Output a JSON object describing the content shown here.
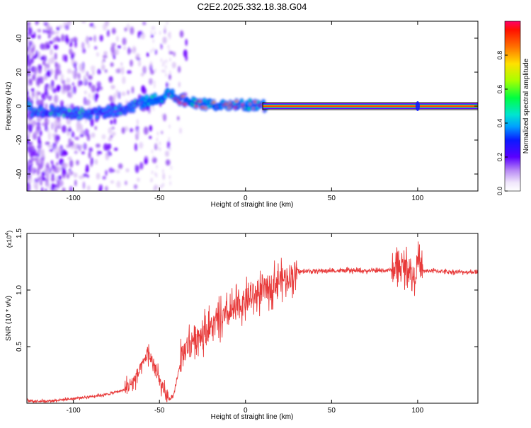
{
  "title": "C2E2.2025.332.18.38.G04",
  "chart_data": [
    {
      "type": "heatmap",
      "xlabel": "Height of straight line (km)",
      "ylabel": "Frequency (Hz)",
      "xlim": [
        -127,
        135
      ],
      "ylim": [
        -50,
        50
      ],
      "xticks": [
        -100,
        -50,
        0,
        50,
        100
      ],
      "yticks": [
        -40,
        -20,
        0,
        20,
        40
      ],
      "colorbar": {
        "label": "Normalized spectral amplitude",
        "ticks": [
          "0.0",
          "0.2",
          "0.4",
          "0.6",
          "0.8"
        ],
        "range": [
          0,
          1
        ],
        "colormap": [
          "#ffffff",
          "#d9bff5",
          "#9b59f2",
          "#6a00ff",
          "#3c00ff",
          "#0033ff",
          "#00a0ff",
          "#00e5d0",
          "#00ff60",
          "#7dff00",
          "#d8ff00",
          "#ffd800",
          "#ff8000",
          "#ff2000",
          "#ff0060"
        ]
      },
      "ridge": [
        {
          "x": -125,
          "y": -3
        },
        {
          "x": -110,
          "y": -3
        },
        {
          "x": -100,
          "y": -4
        },
        {
          "x": -90,
          "y": -5
        },
        {
          "x": -80,
          "y": -3
        },
        {
          "x": -70,
          "y": -2
        },
        {
          "x": -60,
          "y": 2
        },
        {
          "x": -50,
          "y": 5
        },
        {
          "x": -45,
          "y": 7
        },
        {
          "x": -40,
          "y": 5
        },
        {
          "x": -35,
          "y": 3
        },
        {
          "x": -30,
          "y": 2
        },
        {
          "x": -20,
          "y": 1
        },
        {
          "x": -10,
          "y": 1
        },
        {
          "x": 0,
          "y": 1
        },
        {
          "x": 10,
          "y": 0
        },
        {
          "x": 135,
          "y": 0
        }
      ]
    },
    {
      "type": "line",
      "xlabel": "Height of straight line (km)",
      "ylabel": "SNR (10 * v/v)",
      "multiplier": "(x10",
      "multiplier_exp": "4",
      "multiplier_close": ")",
      "xlim": [
        -127,
        135
      ],
      "ylim": [
        0,
        1.5
      ],
      "xticks": [
        -100,
        -50,
        0,
        50,
        100
      ],
      "yticks": [
        "0.5",
        "1.0",
        "1.5"
      ],
      "series": [
        {
          "color": "#e83a3a",
          "x": [
            -127,
            -115,
            -100,
            -90,
            -80,
            -70,
            -65,
            -60,
            -57,
            -55,
            -52,
            -50,
            -48,
            -45,
            -42,
            -38,
            -35,
            -30,
            -25,
            -20,
            -15,
            -10,
            -5,
            0,
            5,
            10,
            15,
            20,
            25,
            30,
            40,
            50,
            60,
            70,
            80,
            85,
            90,
            95,
            98,
            100,
            103,
            105,
            110,
            120,
            135
          ],
          "y": [
            0.02,
            0.02,
            0.04,
            0.06,
            0.08,
            0.12,
            0.2,
            0.32,
            0.45,
            0.4,
            0.28,
            0.2,
            0.12,
            0.04,
            0.05,
            0.35,
            0.48,
            0.58,
            0.62,
            0.67,
            0.73,
            0.78,
            0.84,
            0.9,
            0.95,
            0.99,
            1.04,
            1.09,
            1.12,
            1.16,
            1.17,
            1.17,
            1.17,
            1.17,
            1.17,
            1.18,
            1.2,
            1.2,
            1.1,
            1.25,
            1.17,
            1.17,
            1.17,
            1.16,
            1.16
          ]
        }
      ]
    }
  ]
}
